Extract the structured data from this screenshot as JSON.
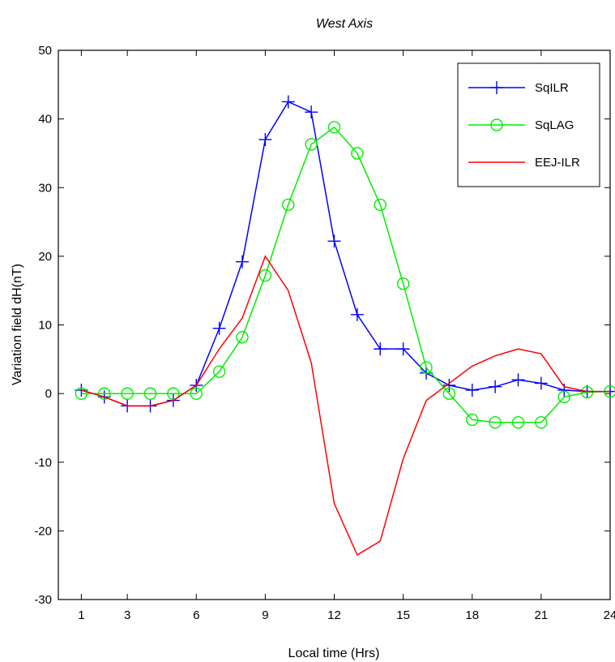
{
  "chart_data": {
    "type": "line",
    "title": "West Axis",
    "xlabel": "Local time (Hrs)",
    "ylabel": "Variation field dH(nT)",
    "xlim": [
      0,
      24
    ],
    "ylim": [
      -30,
      50
    ],
    "xticks": [
      1,
      3,
      6,
      9,
      12,
      15,
      18,
      21,
      24
    ],
    "yticks": [
      -30,
      -20,
      -10,
      0,
      10,
      20,
      30,
      40,
      50
    ],
    "grid": false,
    "legend_position": "top-right",
    "x": [
      1,
      2,
      3,
      4,
      5,
      6,
      7,
      8,
      9,
      10,
      11,
      12,
      13,
      14,
      15,
      16,
      17,
      18,
      19,
      20,
      21,
      22,
      23,
      24
    ],
    "series": [
      {
        "name": "SqILR",
        "color": "#0000ff",
        "marker": "plus",
        "values": [
          0.5,
          -0.5,
          -1.8,
          -1.8,
          -1.0,
          1.2,
          9.5,
          19.2,
          37.0,
          42.5,
          41.0,
          22.2,
          11.5,
          6.5,
          6.5,
          3.0,
          1.2,
          0.5,
          1.0,
          2.0,
          1.5,
          0.5,
          0.3,
          0.3
        ]
      },
      {
        "name": "SqLAG",
        "color": "#00ee00",
        "marker": "circle",
        "values": [
          0.0,
          0.0,
          0.0,
          0.0,
          0.0,
          0.0,
          3.2,
          8.2,
          17.2,
          27.5,
          36.3,
          38.8,
          35.0,
          27.5,
          16.0,
          3.8,
          0.0,
          -3.8,
          -4.2,
          -4.2,
          -4.2,
          -0.5,
          0.2,
          0.3
        ]
      },
      {
        "name": "EEJ-ILR",
        "color": "#ff0000",
        "marker": "none",
        "values": [
          0.5,
          -0.5,
          -1.8,
          -1.8,
          -1.0,
          1.2,
          6.5,
          11.0,
          20.0,
          15.0,
          4.5,
          -16.0,
          -23.5,
          -21.5,
          -9.5,
          -1.0,
          1.5,
          4.0,
          5.5,
          6.5,
          5.8,
          1.0,
          0.3,
          0.3
        ]
      }
    ]
  }
}
